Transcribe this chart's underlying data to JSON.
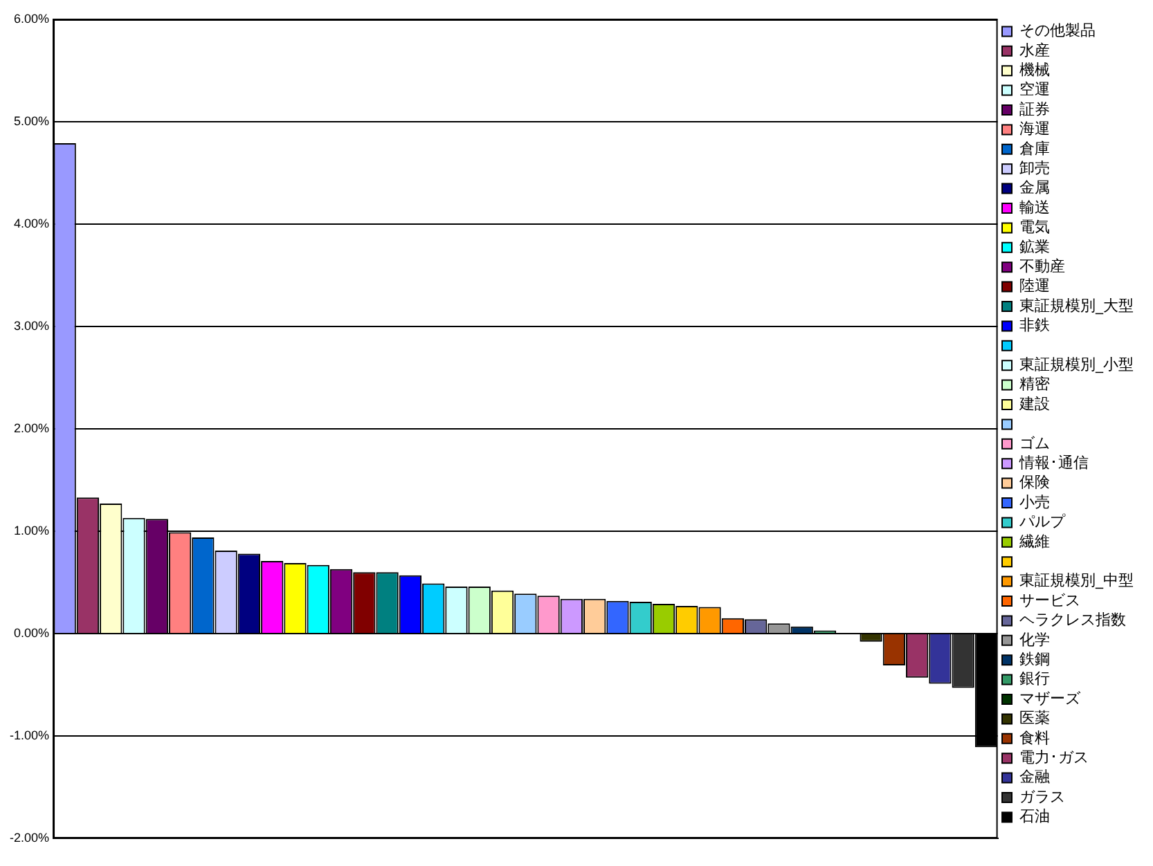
{
  "chart_data": {
    "type": "bar",
    "categories": [
      null,
      null,
      null,
      null,
      null,
      null,
      null,
      null,
      null,
      null,
      null,
      null,
      null,
      null,
      null,
      null,
      null,
      null,
      null,
      null,
      null,
      null,
      null,
      null,
      null,
      null,
      null,
      null,
      null,
      null,
      null,
      null,
      null,
      null,
      null,
      null,
      null,
      null,
      null,
      null,
      null
    ],
    "series": [
      {
        "name": "その他製品",
        "color": "#9999ff",
        "values": [
          4.79,
          null,
          null,
          null,
          null,
          null,
          null,
          null,
          null,
          null,
          null,
          null,
          null,
          null,
          null,
          null,
          null,
          null,
          null,
          null,
          null,
          null,
          null,
          null,
          null,
          null,
          null,
          null,
          null,
          null,
          null,
          null,
          null,
          null,
          null,
          null,
          null,
          null,
          null,
          null,
          null
        ]
      },
      {
        "name": "水産",
        "color": "#993366",
        "values": [
          null,
          1.33,
          null,
          null,
          null,
          null,
          null,
          null,
          null,
          null,
          null,
          null,
          null,
          null,
          null,
          null,
          null,
          null,
          null,
          null,
          null,
          null,
          null,
          null,
          null,
          null,
          null,
          null,
          null,
          null,
          null,
          null,
          null,
          null,
          null,
          null,
          null,
          null,
          null,
          null,
          null
        ]
      },
      {
        "name": "機械",
        "color": "#ffffcc",
        "values": [
          null,
          null,
          1.27,
          null,
          null,
          null,
          null,
          null,
          null,
          null,
          null,
          null,
          null,
          null,
          null,
          null,
          null,
          null,
          null,
          null,
          null,
          null,
          null,
          null,
          null,
          null,
          null,
          null,
          null,
          null,
          null,
          null,
          null,
          null,
          null,
          null,
          null,
          null,
          null,
          null,
          null
        ]
      },
      {
        "name": "空運",
        "color": "#ccffff",
        "values": [
          null,
          null,
          null,
          1.13,
          null,
          null,
          null,
          null,
          null,
          null,
          null,
          null,
          null,
          null,
          null,
          null,
          null,
          null,
          null,
          null,
          null,
          null,
          null,
          null,
          null,
          null,
          null,
          null,
          null,
          null,
          null,
          null,
          null,
          null,
          null,
          null,
          null,
          null,
          null,
          null,
          null
        ]
      },
      {
        "name": "証券",
        "color": "#660066",
        "values": [
          null,
          null,
          null,
          null,
          1.12,
          null,
          null,
          null,
          null,
          null,
          null,
          null,
          null,
          null,
          null,
          null,
          null,
          null,
          null,
          null,
          null,
          null,
          null,
          null,
          null,
          null,
          null,
          null,
          null,
          null,
          null,
          null,
          null,
          null,
          null,
          null,
          null,
          null,
          null,
          null,
          null
        ]
      },
      {
        "name": "海運",
        "color": "#ff8080",
        "values": [
          null,
          null,
          null,
          null,
          null,
          0.99,
          null,
          null,
          null,
          null,
          null,
          null,
          null,
          null,
          null,
          null,
          null,
          null,
          null,
          null,
          null,
          null,
          null,
          null,
          null,
          null,
          null,
          null,
          null,
          null,
          null,
          null,
          null,
          null,
          null,
          null,
          null,
          null,
          null,
          null,
          null
        ]
      },
      {
        "name": "倉庫",
        "color": "#0066cc",
        "values": [
          null,
          null,
          null,
          null,
          null,
          null,
          0.94,
          null,
          null,
          null,
          null,
          null,
          null,
          null,
          null,
          null,
          null,
          null,
          null,
          null,
          null,
          null,
          null,
          null,
          null,
          null,
          null,
          null,
          null,
          null,
          null,
          null,
          null,
          null,
          null,
          null,
          null,
          null,
          null,
          null,
          null
        ]
      },
      {
        "name": "卸売",
        "color": "#ccccff",
        "values": [
          null,
          null,
          null,
          null,
          null,
          null,
          null,
          0.81,
          null,
          null,
          null,
          null,
          null,
          null,
          null,
          null,
          null,
          null,
          null,
          null,
          null,
          null,
          null,
          null,
          null,
          null,
          null,
          null,
          null,
          null,
          null,
          null,
          null,
          null,
          null,
          null,
          null,
          null,
          null,
          null,
          null
        ]
      },
      {
        "name": "金属",
        "color": "#000080",
        "values": [
          null,
          null,
          null,
          null,
          null,
          null,
          null,
          null,
          0.78,
          null,
          null,
          null,
          null,
          null,
          null,
          null,
          null,
          null,
          null,
          null,
          null,
          null,
          null,
          null,
          null,
          null,
          null,
          null,
          null,
          null,
          null,
          null,
          null,
          null,
          null,
          null,
          null,
          null,
          null,
          null,
          null
        ]
      },
      {
        "name": "輸送",
        "color": "#ff00ff",
        "values": [
          null,
          null,
          null,
          null,
          null,
          null,
          null,
          null,
          null,
          0.71,
          null,
          null,
          null,
          null,
          null,
          null,
          null,
          null,
          null,
          null,
          null,
          null,
          null,
          null,
          null,
          null,
          null,
          null,
          null,
          null,
          null,
          null,
          null,
          null,
          null,
          null,
          null,
          null,
          null,
          null,
          null
        ]
      },
      {
        "name": "電気",
        "color": "#ffff00",
        "values": [
          null,
          null,
          null,
          null,
          null,
          null,
          null,
          null,
          null,
          null,
          0.69,
          null,
          null,
          null,
          null,
          null,
          null,
          null,
          null,
          null,
          null,
          null,
          null,
          null,
          null,
          null,
          null,
          null,
          null,
          null,
          null,
          null,
          null,
          null,
          null,
          null,
          null,
          null,
          null,
          null,
          null
        ]
      },
      {
        "name": "鉱業",
        "color": "#00ffff",
        "values": [
          null,
          null,
          null,
          null,
          null,
          null,
          null,
          null,
          null,
          null,
          null,
          0.67,
          null,
          null,
          null,
          null,
          null,
          null,
          null,
          null,
          null,
          null,
          null,
          null,
          null,
          null,
          null,
          null,
          null,
          null,
          null,
          null,
          null,
          null,
          null,
          null,
          null,
          null,
          null,
          null,
          null
        ]
      },
      {
        "name": "不動産",
        "color": "#800080",
        "values": [
          null,
          null,
          null,
          null,
          null,
          null,
          null,
          null,
          null,
          null,
          null,
          null,
          0.63,
          null,
          null,
          null,
          null,
          null,
          null,
          null,
          null,
          null,
          null,
          null,
          null,
          null,
          null,
          null,
          null,
          null,
          null,
          null,
          null,
          null,
          null,
          null,
          null,
          null,
          null,
          null,
          null
        ]
      },
      {
        "name": "陸運",
        "color": "#800000",
        "values": [
          null,
          null,
          null,
          null,
          null,
          null,
          null,
          null,
          null,
          null,
          null,
          null,
          null,
          0.6,
          null,
          null,
          null,
          null,
          null,
          null,
          null,
          null,
          null,
          null,
          null,
          null,
          null,
          null,
          null,
          null,
          null,
          null,
          null,
          null,
          null,
          null,
          null,
          null,
          null,
          null,
          null
        ]
      },
      {
        "name": "東証規模別_大型",
        "color": "#008080",
        "values": [
          null,
          null,
          null,
          null,
          null,
          null,
          null,
          null,
          null,
          null,
          null,
          null,
          null,
          null,
          0.6,
          null,
          null,
          null,
          null,
          null,
          null,
          null,
          null,
          null,
          null,
          null,
          null,
          null,
          null,
          null,
          null,
          null,
          null,
          null,
          null,
          null,
          null,
          null,
          null,
          null,
          null
        ]
      },
      {
        "name": "非鉄",
        "color": "#0000ff",
        "values": [
          null,
          null,
          null,
          null,
          null,
          null,
          null,
          null,
          null,
          null,
          null,
          null,
          null,
          null,
          null,
          0.57,
          null,
          null,
          null,
          null,
          null,
          null,
          null,
          null,
          null,
          null,
          null,
          null,
          null,
          null,
          null,
          null,
          null,
          null,
          null,
          null,
          null,
          null,
          null,
          null,
          null
        ]
      },
      {
        "color": "#00ccff",
        "values": [
          null,
          null,
          null,
          null,
          null,
          null,
          null,
          null,
          null,
          null,
          null,
          null,
          null,
          null,
          null,
          null,
          0.49,
          null,
          null,
          null,
          null,
          null,
          null,
          null,
          null,
          null,
          null,
          null,
          null,
          null,
          null,
          null,
          null,
          null,
          null,
          null,
          null,
          null,
          null,
          null,
          null
        ]
      },
      {
        "name": "東証規模別_小型",
        "color": "#ccffff",
        "values": [
          null,
          null,
          null,
          null,
          null,
          null,
          null,
          null,
          null,
          null,
          null,
          null,
          null,
          null,
          null,
          null,
          null,
          0.46,
          null,
          null,
          null,
          null,
          null,
          null,
          null,
          null,
          null,
          null,
          null,
          null,
          null,
          null,
          null,
          null,
          null,
          null,
          null,
          null,
          null,
          null,
          null
        ]
      },
      {
        "name": "精密",
        "color": "#ccffcc",
        "values": [
          null,
          null,
          null,
          null,
          null,
          null,
          null,
          null,
          null,
          null,
          null,
          null,
          null,
          null,
          null,
          null,
          null,
          null,
          0.46,
          null,
          null,
          null,
          null,
          null,
          null,
          null,
          null,
          null,
          null,
          null,
          null,
          null,
          null,
          null,
          null,
          null,
          null,
          null,
          null,
          null,
          null
        ]
      },
      {
        "name": "建設",
        "color": "#ffff99",
        "values": [
          null,
          null,
          null,
          null,
          null,
          null,
          null,
          null,
          null,
          null,
          null,
          null,
          null,
          null,
          null,
          null,
          null,
          null,
          null,
          0.42,
          null,
          null,
          null,
          null,
          null,
          null,
          null,
          null,
          null,
          null,
          null,
          null,
          null,
          null,
          null,
          null,
          null,
          null,
          null,
          null,
          null
        ]
      },
      {
        "color": "#99ccff",
        "values": [
          null,
          null,
          null,
          null,
          null,
          null,
          null,
          null,
          null,
          null,
          null,
          null,
          null,
          null,
          null,
          null,
          null,
          null,
          null,
          null,
          0.39,
          null,
          null,
          null,
          null,
          null,
          null,
          null,
          null,
          null,
          null,
          null,
          null,
          null,
          null,
          null,
          null,
          null,
          null,
          null,
          null
        ]
      },
      {
        "name": "ゴム",
        "color": "#ff99cc",
        "values": [
          null,
          null,
          null,
          null,
          null,
          null,
          null,
          null,
          null,
          null,
          null,
          null,
          null,
          null,
          null,
          null,
          null,
          null,
          null,
          null,
          null,
          0.37,
          null,
          null,
          null,
          null,
          null,
          null,
          null,
          null,
          null,
          null,
          null,
          null,
          null,
          null,
          null,
          null,
          null,
          null,
          null
        ]
      },
      {
        "name": "情報･通信",
        "color": "#cc99ff",
        "values": [
          null,
          null,
          null,
          null,
          null,
          null,
          null,
          null,
          null,
          null,
          null,
          null,
          null,
          null,
          null,
          null,
          null,
          null,
          null,
          null,
          null,
          null,
          0.34,
          null,
          null,
          null,
          null,
          null,
          null,
          null,
          null,
          null,
          null,
          null,
          null,
          null,
          null,
          null,
          null,
          null,
          null
        ]
      },
      {
        "name": "保険",
        "color": "#ffcc99",
        "values": [
          null,
          null,
          null,
          null,
          null,
          null,
          null,
          null,
          null,
          null,
          null,
          null,
          null,
          null,
          null,
          null,
          null,
          null,
          null,
          null,
          null,
          null,
          null,
          0.34,
          null,
          null,
          null,
          null,
          null,
          null,
          null,
          null,
          null,
          null,
          null,
          null,
          null,
          null,
          null,
          null,
          null
        ]
      },
      {
        "name": "小売",
        "color": "#3366ff",
        "values": [
          null,
          null,
          null,
          null,
          null,
          null,
          null,
          null,
          null,
          null,
          null,
          null,
          null,
          null,
          null,
          null,
          null,
          null,
          null,
          null,
          null,
          null,
          null,
          null,
          0.32,
          null,
          null,
          null,
          null,
          null,
          null,
          null,
          null,
          null,
          null,
          null,
          null,
          null,
          null,
          null,
          null
        ]
      },
      {
        "name": "パルプ",
        "color": "#33cccc",
        "values": [
          null,
          null,
          null,
          null,
          null,
          null,
          null,
          null,
          null,
          null,
          null,
          null,
          null,
          null,
          null,
          null,
          null,
          null,
          null,
          null,
          null,
          null,
          null,
          null,
          null,
          0.31,
          null,
          null,
          null,
          null,
          null,
          null,
          null,
          null,
          null,
          null,
          null,
          null,
          null,
          null,
          null
        ]
      },
      {
        "name": "繊維",
        "color": "#99cc00",
        "values": [
          null,
          null,
          null,
          null,
          null,
          null,
          null,
          null,
          null,
          null,
          null,
          null,
          null,
          null,
          null,
          null,
          null,
          null,
          null,
          null,
          null,
          null,
          null,
          null,
          null,
          null,
          0.29,
          null,
          null,
          null,
          null,
          null,
          null,
          null,
          null,
          null,
          null,
          null,
          null,
          null,
          null
        ]
      },
      {
        "color": "#ffcc00",
        "values": [
          null,
          null,
          null,
          null,
          null,
          null,
          null,
          null,
          null,
          null,
          null,
          null,
          null,
          null,
          null,
          null,
          null,
          null,
          null,
          null,
          null,
          null,
          null,
          null,
          null,
          null,
          null,
          0.27,
          null,
          null,
          null,
          null,
          null,
          null,
          null,
          null,
          null,
          null,
          null,
          null,
          null
        ]
      },
      {
        "name": "東証規模別_中型",
        "color": "#ff9900",
        "values": [
          null,
          null,
          null,
          null,
          null,
          null,
          null,
          null,
          null,
          null,
          null,
          null,
          null,
          null,
          null,
          null,
          null,
          null,
          null,
          null,
          null,
          null,
          null,
          null,
          null,
          null,
          null,
          null,
          0.26,
          null,
          null,
          null,
          null,
          null,
          null,
          null,
          null,
          null,
          null,
          null,
          null
        ]
      },
      {
        "name": "サービス",
        "color": "#ff6600",
        "values": [
          null,
          null,
          null,
          null,
          null,
          null,
          null,
          null,
          null,
          null,
          null,
          null,
          null,
          null,
          null,
          null,
          null,
          null,
          null,
          null,
          null,
          null,
          null,
          null,
          null,
          null,
          null,
          null,
          null,
          0.15,
          null,
          null,
          null,
          null,
          null,
          null,
          null,
          null,
          null,
          null,
          null
        ]
      },
      {
        "name": "ヘラクレス指数",
        "color": "#666699",
        "values": [
          null,
          null,
          null,
          null,
          null,
          null,
          null,
          null,
          null,
          null,
          null,
          null,
          null,
          null,
          null,
          null,
          null,
          null,
          null,
          null,
          null,
          null,
          null,
          null,
          null,
          null,
          null,
          null,
          null,
          null,
          0.14,
          null,
          null,
          null,
          null,
          null,
          null,
          null,
          null,
          null,
          null
        ]
      },
      {
        "name": "化学",
        "color": "#969696",
        "values": [
          null,
          null,
          null,
          null,
          null,
          null,
          null,
          null,
          null,
          null,
          null,
          null,
          null,
          null,
          null,
          null,
          null,
          null,
          null,
          null,
          null,
          null,
          null,
          null,
          null,
          null,
          null,
          null,
          null,
          null,
          null,
          0.1,
          null,
          null,
          null,
          null,
          null,
          null,
          null,
          null,
          null
        ]
      },
      {
        "name": "鉄鋼",
        "color": "#003366",
        "values": [
          null,
          null,
          null,
          null,
          null,
          null,
          null,
          null,
          null,
          null,
          null,
          null,
          null,
          null,
          null,
          null,
          null,
          null,
          null,
          null,
          null,
          null,
          null,
          null,
          null,
          null,
          null,
          null,
          null,
          null,
          null,
          null,
          0.07,
          null,
          null,
          null,
          null,
          null,
          null,
          null,
          null
        ]
      },
      {
        "name": "銀行",
        "color": "#339966",
        "values": [
          null,
          null,
          null,
          null,
          null,
          null,
          null,
          null,
          null,
          null,
          null,
          null,
          null,
          null,
          null,
          null,
          null,
          null,
          null,
          null,
          null,
          null,
          null,
          null,
          null,
          null,
          null,
          null,
          null,
          null,
          null,
          null,
          null,
          0.03,
          null,
          null,
          null,
          null,
          null,
          null,
          null
        ]
      },
      {
        "name": "マザーズ",
        "color": "#003300",
        "values": [
          null,
          null,
          null,
          null,
          null,
          null,
          null,
          null,
          null,
          null,
          null,
          null,
          null,
          null,
          null,
          null,
          null,
          null,
          null,
          null,
          null,
          null,
          null,
          null,
          null,
          null,
          null,
          null,
          null,
          null,
          null,
          null,
          null,
          null,
          null,
          null,
          null,
          null,
          null,
          null,
          null
        ]
      },
      {
        "name": "医薬",
        "color": "#333300",
        "values": [
          null,
          null,
          null,
          null,
          null,
          null,
          null,
          null,
          null,
          null,
          null,
          null,
          null,
          null,
          null,
          null,
          null,
          null,
          null,
          null,
          null,
          null,
          null,
          null,
          null,
          null,
          null,
          null,
          null,
          null,
          null,
          null,
          null,
          null,
          null,
          -0.08,
          null,
          null,
          null,
          null,
          null
        ]
      },
      {
        "name": "食料",
        "color": "#993300",
        "values": [
          null,
          null,
          null,
          null,
          null,
          null,
          null,
          null,
          null,
          null,
          null,
          null,
          null,
          null,
          null,
          null,
          null,
          null,
          null,
          null,
          null,
          null,
          null,
          null,
          null,
          null,
          null,
          null,
          null,
          null,
          null,
          null,
          null,
          null,
          null,
          null,
          -0.31,
          null,
          null,
          null,
          null
        ]
      },
      {
        "name": "電力･ガス",
        "color": "#993366",
        "values": [
          null,
          null,
          null,
          null,
          null,
          null,
          null,
          null,
          null,
          null,
          null,
          null,
          null,
          null,
          null,
          null,
          null,
          null,
          null,
          null,
          null,
          null,
          null,
          null,
          null,
          null,
          null,
          null,
          null,
          null,
          null,
          null,
          null,
          null,
          null,
          null,
          null,
          -0.43,
          null,
          null,
          null
        ]
      },
      {
        "name": "金融",
        "color": "#333399",
        "values": [
          null,
          null,
          null,
          null,
          null,
          null,
          null,
          null,
          null,
          null,
          null,
          null,
          null,
          null,
          null,
          null,
          null,
          null,
          null,
          null,
          null,
          null,
          null,
          null,
          null,
          null,
          null,
          null,
          null,
          null,
          null,
          null,
          null,
          null,
          null,
          null,
          null,
          null,
          -0.49,
          null,
          null
        ]
      },
      {
        "name": "ガラス",
        "color": "#333333",
        "values": [
          null,
          null,
          null,
          null,
          null,
          null,
          null,
          null,
          null,
          null,
          null,
          null,
          null,
          null,
          null,
          null,
          null,
          null,
          null,
          null,
          null,
          null,
          null,
          null,
          null,
          null,
          null,
          null,
          null,
          null,
          null,
          null,
          null,
          null,
          null,
          null,
          null,
          null,
          null,
          -0.53,
          null
        ]
      },
      {
        "name": "石油",
        "color": "#000000",
        "values": [
          null,
          null,
          null,
          null,
          null,
          null,
          null,
          null,
          null,
          null,
          null,
          null,
          null,
          null,
          null,
          null,
          null,
          null,
          null,
          null,
          null,
          null,
          null,
          null,
          null,
          null,
          null,
          null,
          null,
          null,
          null,
          null,
          null,
          null,
          null,
          null,
          null,
          null,
          null,
          null,
          -1.11
        ]
      }
    ],
    "ylim": [
      -2,
      6
    ],
    "yticks": [
      {
        "value": -2,
        "label": "-2.00%"
      },
      {
        "value": -1,
        "label": "-1.00%"
      },
      {
        "value": 0,
        "label": "0.00%"
      },
      {
        "value": 1,
        "label": "1.00%"
      },
      {
        "value": 2,
        "label": "2.00%"
      },
      {
        "value": 3,
        "label": "3.00%"
      },
      {
        "value": 4,
        "label": "4.00%"
      },
      {
        "value": 5,
        "label": "5.00%"
      },
      {
        "value": 6,
        "label": "6.00%"
      }
    ],
    "grid": "y",
    "legend": "right",
    "tick_labels": "y"
  }
}
